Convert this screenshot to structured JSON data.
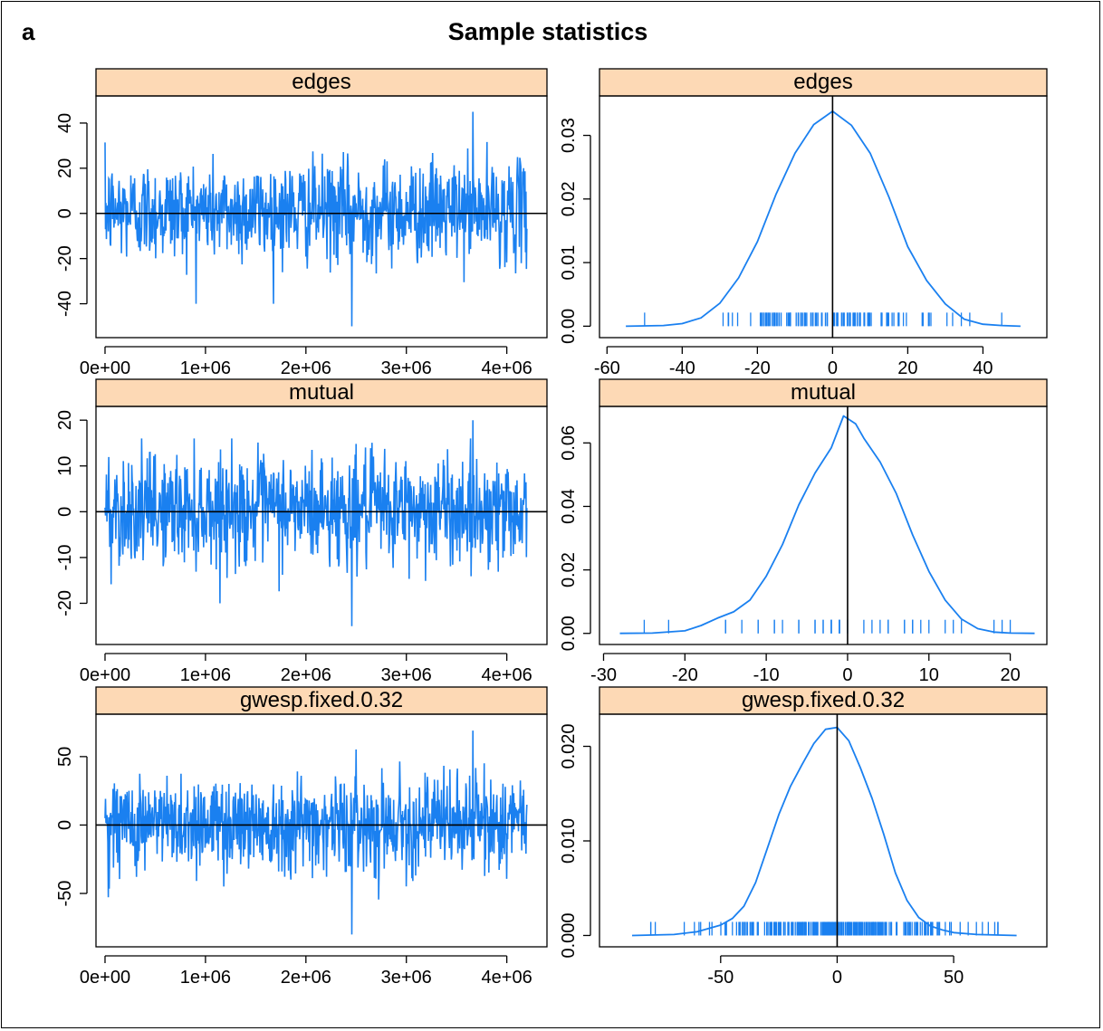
{
  "figure": {
    "panel_letter": "a",
    "title": "Sample statistics"
  },
  "colors": {
    "series": "#1a80f0",
    "strip": "#fdd9b5",
    "axis": "#000000"
  },
  "chart_data": [
    {
      "type": "line",
      "subtype": "trace",
      "strip": "edges",
      "x_ticks": [
        "0e+00",
        "1e+06",
        "2e+06",
        "3e+06",
        "4e+06"
      ],
      "x_tick_values": [
        0,
        1000000,
        2000000,
        3000000,
        4000000
      ],
      "y_ticks": [
        "-40",
        "-20",
        "0",
        "20",
        "40"
      ],
      "y_tick_values": [
        -40,
        -20,
        0,
        20,
        40
      ],
      "xlim": [
        -90000,
        4400000
      ],
      "ylim": [
        -55,
        52
      ],
      "x_range": [
        0,
        4200000
      ],
      "typical_spread": [
        -22,
        24
      ],
      "min": -50,
      "max": 45,
      "reference_line": 0
    },
    {
      "type": "line",
      "subtype": "density",
      "strip": "edges",
      "x_ticks": [
        "-60",
        "-40",
        "-20",
        "0",
        "20",
        "40"
      ],
      "x_tick_values": [
        -60,
        -40,
        -20,
        0,
        20,
        40
      ],
      "y_ticks": [
        "0.00",
        "0.01",
        "0.02",
        "0.03"
      ],
      "y_tick_values": [
        0,
        0.01,
        0.02,
        0.03
      ],
      "xlim": [
        -62,
        57
      ],
      "ylim": [
        -0.0018,
        0.0362
      ],
      "x": [
        -55,
        -45,
        -40,
        -35,
        -30,
        -25,
        -20,
        -15,
        -10,
        -5,
        0,
        5,
        10,
        15,
        20,
        25,
        30,
        35,
        40,
        45,
        50
      ],
      "y": [
        0,
        0.0001,
        0.0004,
        0.0013,
        0.0036,
        0.0076,
        0.0133,
        0.0208,
        0.0272,
        0.0317,
        0.0338,
        0.0316,
        0.0272,
        0.0203,
        0.0125,
        0.0072,
        0.0035,
        0.0011,
        0.0003,
        0.0001,
        0
      ],
      "rug_range": [
        -50,
        45
      ],
      "reference_line": 0
    },
    {
      "type": "line",
      "subtype": "trace",
      "strip": "mutual",
      "x_ticks": [
        "0e+00",
        "1e+06",
        "2e+06",
        "3e+06",
        "4e+06"
      ],
      "x_tick_values": [
        0,
        1000000,
        2000000,
        3000000,
        4000000
      ],
      "y_ticks": [
        "-20",
        "-10",
        "0",
        "10",
        "20"
      ],
      "y_tick_values": [
        -20,
        -10,
        0,
        10,
        20
      ],
      "xlim": [
        -90000,
        4400000
      ],
      "ylim": [
        -29,
        23
      ],
      "x_range": [
        0,
        4200000
      ],
      "typical_spread": [
        -12,
        13
      ],
      "min": -25,
      "max": 20,
      "reference_line": 0
    },
    {
      "type": "line",
      "subtype": "density",
      "strip": "mutual",
      "x_ticks": [
        "-30",
        "-20",
        "-10",
        "0",
        "10",
        "20"
      ],
      "x_tick_values": [
        -30,
        -20,
        -10,
        0,
        10,
        20
      ],
      "y_ticks": [
        "0.00",
        "0.02",
        "0.04",
        "0.06"
      ],
      "y_tick_values": [
        0,
        0.02,
        0.04,
        0.06
      ],
      "xlim": [
        -30.5,
        24.5
      ],
      "ylim": [
        -0.0035,
        0.0715
      ],
      "x": [
        -28,
        -24,
        -20,
        -18,
        -16,
        -14,
        -12,
        -10,
        -8,
        -6,
        -4,
        -2,
        -0.5,
        1,
        2,
        4,
        6,
        8,
        10,
        12,
        14,
        16,
        18,
        20,
        23
      ],
      "y": [
        0,
        0.0001,
        0.0008,
        0.0025,
        0.0048,
        0.0068,
        0.0105,
        0.018,
        0.028,
        0.0405,
        0.0505,
        0.0585,
        0.0685,
        0.066,
        0.0615,
        0.054,
        0.044,
        0.031,
        0.0195,
        0.0105,
        0.0045,
        0.0015,
        0.0004,
        0.0001,
        0
      ],
      "rug_range": [
        -25,
        20
      ],
      "reference_line": 0
    },
    {
      "type": "line",
      "subtype": "trace",
      "strip": "gwesp.fixed.0.32",
      "x_ticks": [
        "0e+00",
        "1e+06",
        "2e+06",
        "3e+06",
        "4e+06"
      ],
      "x_tick_values": [
        0,
        1000000,
        2000000,
        3000000,
        4000000
      ],
      "y_ticks": [
        "-50",
        "0",
        "50"
      ],
      "y_tick_values": [
        -50,
        0,
        50
      ],
      "xlim": [
        -90000,
        4400000
      ],
      "ylim": [
        -89,
        81
      ],
      "x_range": [
        0,
        4200000
      ],
      "typical_spread": [
        -35,
        38
      ],
      "min": -80,
      "max": 69,
      "reference_line": 0
    },
    {
      "type": "line",
      "subtype": "density",
      "strip": "gwesp.fixed.0.32",
      "x_ticks": [
        "-50",
        "0",
        "50"
      ],
      "x_tick_values": [
        -50,
        0,
        50
      ],
      "y_ticks": [
        "0.000",
        "0.010",
        "0.020"
      ],
      "y_tick_values": [
        0,
        0.01,
        0.02
      ],
      "xlim": [
        -102,
        90
      ],
      "ylim": [
        -0.0012,
        0.0234
      ],
      "x": [
        -88,
        -70,
        -60,
        -50,
        -45,
        -40,
        -35,
        -30,
        -25,
        -20,
        -15,
        -10,
        -5,
        0,
        5,
        10,
        15,
        20,
        25,
        30,
        35,
        40,
        45,
        50,
        60,
        77
      ],
      "y": [
        0,
        0.0001,
        0.0004,
        0.0011,
        0.0018,
        0.0031,
        0.0056,
        0.0092,
        0.0128,
        0.0158,
        0.0181,
        0.0203,
        0.0218,
        0.022,
        0.0206,
        0.0177,
        0.0145,
        0.0107,
        0.0066,
        0.0037,
        0.0019,
        0.001,
        0.0006,
        0.0003,
        0.0001,
        0
      ],
      "rug_range": [
        -80,
        69
      ],
      "reference_line": 0
    }
  ]
}
